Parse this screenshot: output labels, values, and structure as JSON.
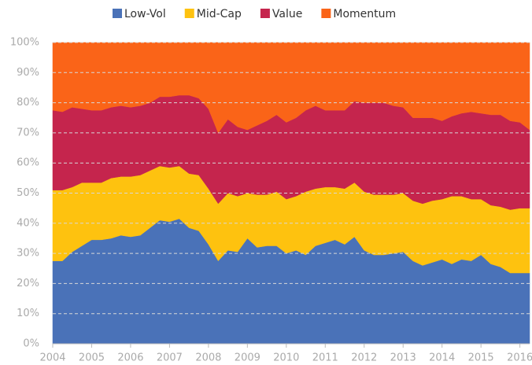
{
  "chart_data": {
    "type": "area",
    "stacked": true,
    "x": [
      2004,
      2004.25,
      2004.5,
      2004.75,
      2005,
      2005.25,
      2005.5,
      2005.75,
      2006,
      2006.25,
      2006.5,
      2006.75,
      2007,
      2007.25,
      2007.5,
      2007.75,
      2008,
      2008.25,
      2008.5,
      2008.75,
      2009,
      2009.25,
      2009.5,
      2009.75,
      2010,
      2010.25,
      2010.5,
      2010.75,
      2011,
      2011.25,
      2011.5,
      2011.75,
      2012,
      2012.25,
      2012.5,
      2012.75,
      2013,
      2013.25,
      2013.5,
      2013.75,
      2014,
      2014.25,
      2014.5,
      2014.75,
      2015,
      2015.25,
      2015.5,
      2015.75,
      2016,
      2016.25
    ],
    "series": [
      {
        "name": "Low-Vol",
        "color": "#4a72b8",
        "values": [
          27.5,
          27.5,
          30.5,
          32.5,
          34.5,
          34.5,
          35,
          36,
          35.5,
          36,
          38.5,
          41,
          40.5,
          41.5,
          38.5,
          37.5,
          33,
          27.5,
          31,
          30.5,
          35,
          32,
          32.5,
          32.5,
          30,
          31,
          29.5,
          32.5,
          33.5,
          34.5,
          33,
          35.5,
          31,
          29.5,
          29.5,
          30,
          30.5,
          27.5,
          26,
          27,
          28,
          26.5,
          28,
          27.5,
          29.5,
          26.5,
          25.5,
          23.5,
          23.5,
          23.5
        ]
      },
      {
        "name": "Mid-Cap",
        "color": "#fec20f",
        "values": [
          23.5,
          23.5,
          21.5,
          21,
          19,
          19,
          20,
          19.5,
          20,
          20,
          19,
          18,
          18,
          17.5,
          18,
          18.5,
          18.5,
          19,
          19,
          18.5,
          15,
          17.5,
          17,
          18,
          18,
          18,
          21,
          19,
          18.5,
          17.5,
          18.5,
          18,
          19.5,
          20,
          20,
          19.5,
          19.5,
          20,
          20.5,
          20.5,
          20,
          22.5,
          21,
          20.5,
          18.5,
          19.5,
          20,
          21,
          21.5,
          21.5
        ]
      },
      {
        "name": "Value",
        "color": "#c5254d",
        "values": [
          26.5,
          26,
          26.5,
          24.5,
          24,
          24,
          23.5,
          23.5,
          23,
          23,
          22.5,
          23,
          23.5,
          23.5,
          26,
          25.5,
          26.5,
          23.5,
          24.5,
          23,
          21,
          23,
          24.5,
          25.5,
          25.5,
          26,
          27,
          27.5,
          25.5,
          25.5,
          26,
          27,
          29.5,
          30.5,
          30.5,
          29.5,
          28.5,
          27.5,
          28.5,
          27.5,
          26,
          26.5,
          27.5,
          29,
          28.5,
          30,
          30.5,
          29.5,
          28.5,
          26
        ]
      },
      {
        "name": "Momentum",
        "color": "#fa6418",
        "values": [
          22.5,
          23,
          21.5,
          22,
          22.5,
          22.5,
          21.5,
          21,
          21.5,
          21,
          20,
          18,
          18,
          17.5,
          17.5,
          18.5,
          22,
          30,
          25.5,
          28,
          29,
          27.5,
          26,
          24,
          26.5,
          25,
          22.5,
          21,
          22.5,
          22.5,
          22.5,
          19.5,
          20,
          20,
          20,
          21,
          21.5,
          25,
          25,
          25,
          26,
          24.5,
          23.5,
          23,
          23.5,
          24,
          24,
          26,
          26.5,
          29
        ]
      }
    ],
    "xlim": [
      2004,
      2016.25
    ],
    "xticks": [
      2004,
      2005,
      2006,
      2007,
      2008,
      2009,
      2010,
      2011,
      2012,
      2013,
      2014,
      2015,
      2016
    ],
    "ylim": [
      0,
      100
    ],
    "yticks": [
      {
        "value": 0,
        "label": "0%"
      },
      {
        "value": 10,
        "label": "10%"
      },
      {
        "value": 20,
        "label": "20%"
      },
      {
        "value": 30,
        "label": "30%"
      },
      {
        "value": 40,
        "label": "40%"
      },
      {
        "value": 50,
        "label": "50%"
      },
      {
        "value": 60,
        "label": "60%"
      },
      {
        "value": 70,
        "label": "70%"
      },
      {
        "value": 80,
        "label": "80%"
      },
      {
        "value": 90,
        "label": "90%"
      },
      {
        "value": 100,
        "label": "100%"
      }
    ],
    "grid": true,
    "legend": "top"
  }
}
